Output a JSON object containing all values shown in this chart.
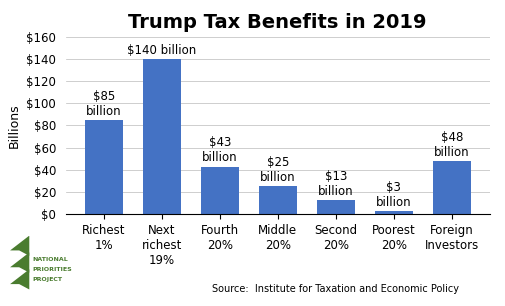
{
  "title": "Trump Tax Benefits in 2019",
  "categories": [
    "Richest\n1%",
    "Next\nrichest\n19%",
    "Fourth\n20%",
    "Middle\n20%",
    "Second\n20%",
    "Poorest\n20%",
    "Foreign\nInvestors"
  ],
  "values": [
    85,
    140,
    43,
    25,
    13,
    3,
    48
  ],
  "bar_labels_line1": [
    "$85",
    "$140 billion",
    "$43",
    "$25",
    "$13",
    "$3",
    "$48"
  ],
  "bar_labels_line2": [
    "billion",
    "",
    "billion",
    "billion",
    "billion",
    "billion",
    "billion"
  ],
  "bar_color": "#4472C4",
  "ylabel": "Billions",
  "ylim": [
    0,
    160
  ],
  "yticks": [
    0,
    20,
    40,
    60,
    80,
    100,
    120,
    140,
    160
  ],
  "ytick_labels": [
    "$0",
    "$20",
    "$40",
    "$60",
    "$80",
    "$100",
    "$120",
    "$140",
    "$160"
  ],
  "source_text": "Source:  Institute for Taxation and Economic Policy",
  "title_fontsize": 14,
  "ylabel_fontsize": 9,
  "tick_fontsize": 8.5,
  "label_fontsize": 8.5,
  "background_color": "#ffffff",
  "logo_text": "NATIONAL\nPRIORITIES\nPROJECT",
  "logo_color": "#4a7c2f"
}
